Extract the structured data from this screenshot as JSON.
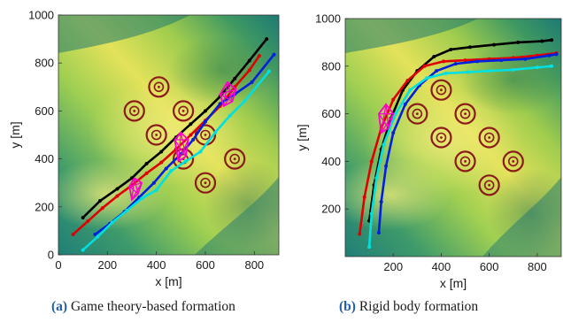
{
  "chart_data": [
    {
      "type": "line",
      "panel": "a",
      "caption_tag": "(a)",
      "caption": "Game theory-based formation",
      "xlabel": "x [m]",
      "ylabel": "y [m]",
      "xlim": [
        0,
        900
      ],
      "ylim": [
        0,
        1000
      ],
      "xticks": [
        "0",
        "200",
        "400",
        "600",
        "800"
      ],
      "xtick_values": [
        0,
        200,
        400,
        600,
        800
      ],
      "yticks": [
        "0",
        "200",
        "400",
        "600",
        "800",
        "1000"
      ],
      "ytick_values": [
        0,
        200,
        400,
        600,
        800,
        1000
      ],
      "background": "terrain",
      "grid": false,
      "series": [
        {
          "color": "#000000",
          "x": [
            100,
            170,
            240,
            300,
            360,
            420,
            480,
            540,
            600,
            660,
            720,
            780,
            850
          ],
          "y": [
            155,
            225,
            275,
            320,
            380,
            430,
            490,
            545,
            600,
            660,
            735,
            810,
            900
          ]
        },
        {
          "color": "#e00000",
          "x": [
            60,
            120,
            180,
            240,
            300,
            360,
            420,
            480,
            540,
            600,
            660,
            720,
            780,
            820
          ],
          "y": [
            85,
            140,
            195,
            245,
            290,
            340,
            385,
            440,
            500,
            560,
            620,
            700,
            770,
            830
          ]
        },
        {
          "color": "#0020e0",
          "x": [
            150,
            210,
            270,
            330,
            390,
            440,
            500,
            550,
            600,
            660,
            720,
            790,
            880
          ],
          "y": [
            85,
            130,
            180,
            240,
            300,
            360,
            420,
            480,
            555,
            630,
            670,
            720,
            835
          ]
        },
        {
          "color": "#00e0e0",
          "x": [
            100,
            160,
            220,
            280,
            340,
            400,
            460,
            520,
            580,
            640,
            700,
            760,
            860
          ],
          "y": [
            20,
            75,
            135,
            185,
            235,
            270,
            350,
            390,
            430,
            510,
            580,
            640,
            765
          ]
        }
      ],
      "formations": [
        {
          "x": [
            290,
            310,
            340,
            325,
            300
          ],
          "y": [
            285,
            320,
            300,
            255,
            230
          ]
        },
        {
          "x": [
            475,
            500,
            530,
            520,
            490
          ],
          "y": [
            480,
            510,
            480,
            410,
            390
          ]
        },
        {
          "x": [
            660,
            690,
            725,
            710,
            675
          ],
          "y": [
            670,
            720,
            690,
            640,
            620
          ]
        }
      ],
      "formation_color": "#ff00cc",
      "obstacles": {
        "color": "#8b1a1a",
        "x": [
          410,
          310,
          510,
          400,
          600,
          720,
          510,
          600
        ],
        "y": [
          700,
          600,
          600,
          500,
          500,
          400,
          400,
          300
        ]
      }
    },
    {
      "type": "line",
      "panel": "b",
      "caption_tag": "(b)",
      "caption": "Rigid body formation",
      "xlabel": "x [m]",
      "ylabel": "y [m]",
      "xlim": [
        0,
        900
      ],
      "ylim": [
        0,
        1000
      ],
      "xticks": [
        "200",
        "400",
        "600",
        "800"
      ],
      "xtick_values": [
        200,
        400,
        600,
        800
      ],
      "yticks": [
        "200",
        "400",
        "600",
        "800",
        "1000"
      ],
      "ytick_values": [
        200,
        400,
        600,
        800,
        1000
      ],
      "background": "terrain",
      "grid": false,
      "series": [
        {
          "color": "#000000",
          "x": [
            100,
            120,
            150,
            190,
            240,
            300,
            370,
            440,
            520,
            620,
            720,
            820,
            860
          ],
          "y": [
            150,
            300,
            450,
            580,
            700,
            780,
            840,
            870,
            880,
            890,
            900,
            905,
            910
          ]
        },
        {
          "color": "#e00000",
          "x": [
            60,
            80,
            110,
            150,
            200,
            260,
            330,
            410,
            500,
            600,
            700,
            800,
            880
          ],
          "y": [
            95,
            250,
            400,
            540,
            660,
            740,
            800,
            820,
            825,
            830,
            835,
            845,
            855
          ]
        },
        {
          "color": "#0020e0",
          "x": [
            140,
            150,
            170,
            200,
            250,
            310,
            380,
            460,
            550,
            650,
            750,
            850,
            880
          ],
          "y": [
            100,
            230,
            380,
            520,
            640,
            720,
            780,
            810,
            820,
            825,
            830,
            845,
            850
          ]
        },
        {
          "color": "#00e0e0",
          "x": [
            100,
            110,
            130,
            160,
            210,
            270,
            340,
            420,
            510,
            600,
            700,
            800,
            860
          ],
          "y": [
            40,
            180,
            330,
            470,
            600,
            700,
            750,
            770,
            775,
            780,
            785,
            795,
            800
          ]
        }
      ],
      "formations": [
        {
          "x": [
            140,
            170,
            200,
            180,
            150
          ],
          "y": [
            600,
            640,
            600,
            540,
            520
          ]
        }
      ],
      "formation_color": "#ff00cc",
      "obstacles": {
        "color": "#8b1a1a",
        "x": [
          400,
          300,
          500,
          400,
          600,
          500,
          700,
          600
        ],
        "y": [
          700,
          600,
          600,
          500,
          500,
          400,
          400,
          300
        ]
      }
    }
  ]
}
